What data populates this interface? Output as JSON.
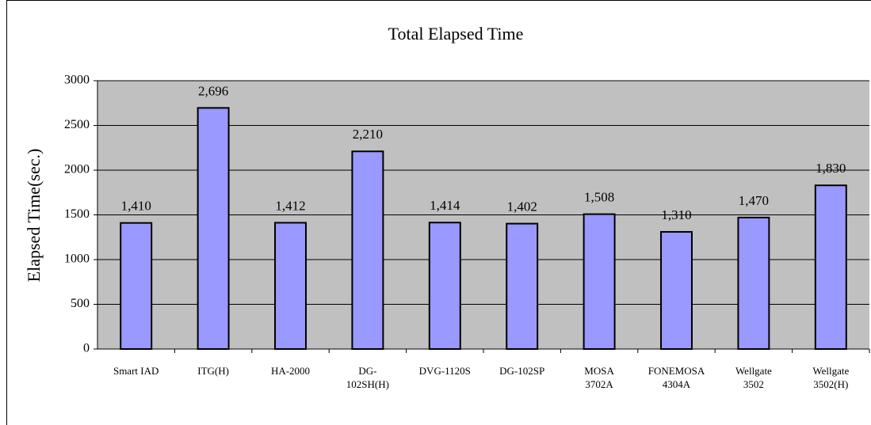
{
  "chart_data": {
    "type": "bar",
    "title": "Total Elapsed Time",
    "y_label": "Elapsed Time(sec.)",
    "categories": [
      "Smart IAD",
      "ITG(H)",
      "HA-2000",
      "DG-102SH(H)",
      "DVG-1120S",
      "DG-102SP",
      "MOSA 3702A",
      "FONEMOSA 4304A",
      "Wellgate 3502",
      "Wellgate 3502(H)"
    ],
    "values": [
      1410,
      2696,
      1412,
      2210,
      1414,
      1402,
      1508,
      1310,
      1470,
      1830
    ],
    "value_labels": [
      "1,410",
      "2,696",
      "1,412",
      "2,210",
      "1,414",
      "1,402",
      "1,508",
      "1,310",
      "1,470",
      "1,830"
    ],
    "color": "#9999ff",
    "plot_background": "#c0c0c0",
    "ylim": [
      0,
      3000
    ],
    "yticks": [
      0,
      500,
      1000,
      1500,
      2000,
      2500,
      3000
    ],
    "grid": true
  }
}
